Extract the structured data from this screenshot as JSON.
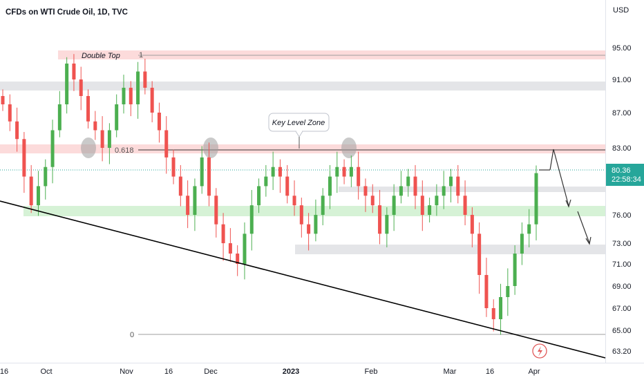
{
  "header": {
    "title": "CFDs on WTI Crude Oil, 1D, TVC"
  },
  "price_axis": {
    "currency": "USD",
    "ticks": [
      "95.00",
      "91.00",
      "87.00",
      "83.00",
      "76.00",
      "73.00",
      "71.00",
      "69.00",
      "67.00",
      "65.00",
      "63.20"
    ],
    "current_price": "80.36",
    "countdown": "22:58:34"
  },
  "time_axis": {
    "labels": [
      "16",
      "Oct",
      "Nov",
      "16",
      "Dec",
      "2023",
      "Feb",
      "Mar",
      "16",
      "Apr"
    ]
  },
  "annotations": {
    "double_top": "Double Top",
    "key_level": "Key Level Zone",
    "fib_618": "0.618",
    "fib_1": "1",
    "fib_0": "0"
  },
  "colors": {
    "up": "#26a69a",
    "up_light": "#4caf50",
    "down": "#ef5350",
    "resistance_zone": "#fbd5d5",
    "support_zone": "#d6f2d6",
    "gray_zone": "#e4e5e8",
    "price_tag": "#26a69a",
    "trendline": "#000000"
  },
  "icons": {
    "alert": "lightning-icon"
  },
  "chart_data": {
    "type": "candlestick",
    "title": "CFDs on WTI Crude Oil, 1D, TVC",
    "ylabel": "USD",
    "x_range": [
      "Sep 2022",
      "Apr 2023"
    ],
    "y_ticks": [
      95.0,
      91.0,
      87.0,
      83.0,
      76.0,
      73.0,
      71.0,
      69.0,
      67.0,
      65.0,
      63.2
    ],
    "last_price": 80.36,
    "approx_closes": [
      88,
      86,
      84,
      80,
      77,
      79,
      81,
      85,
      88,
      93,
      91,
      89,
      86,
      85,
      83,
      85,
      88,
      90,
      88,
      92,
      90,
      87,
      85,
      82,
      80,
      78,
      76,
      79,
      82,
      78,
      75,
      73,
      72,
      71,
      74,
      77,
      79,
      80,
      81,
      80,
      78,
      77,
      75,
      74,
      76,
      78,
      80,
      81,
      80,
      81,
      79,
      78,
      77,
      74,
      76,
      78,
      79,
      80,
      78,
      76,
      77,
      78,
      79,
      80,
      78,
      76,
      74,
      70,
      67,
      66,
      68,
      69,
      72,
      74,
      75,
      80.36
    ],
    "levels": {
      "fib_1": 93.8,
      "fib_0.618": 81.7,
      "fib_0": 64.6
    },
    "zones": [
      {
        "name": "double top resistance",
        "from": 93.3,
        "to": 94.2
      },
      {
        "name": "gray resistance",
        "from": 89.8,
        "to": 90.6
      },
      {
        "name": "key level zone",
        "from": 81.2,
        "to": 82.2
      },
      {
        "name": "support",
        "from": 75.6,
        "to": 76.4
      },
      {
        "name": "gray support",
        "from": 71.9,
        "to": 72.8
      }
    ]
  }
}
